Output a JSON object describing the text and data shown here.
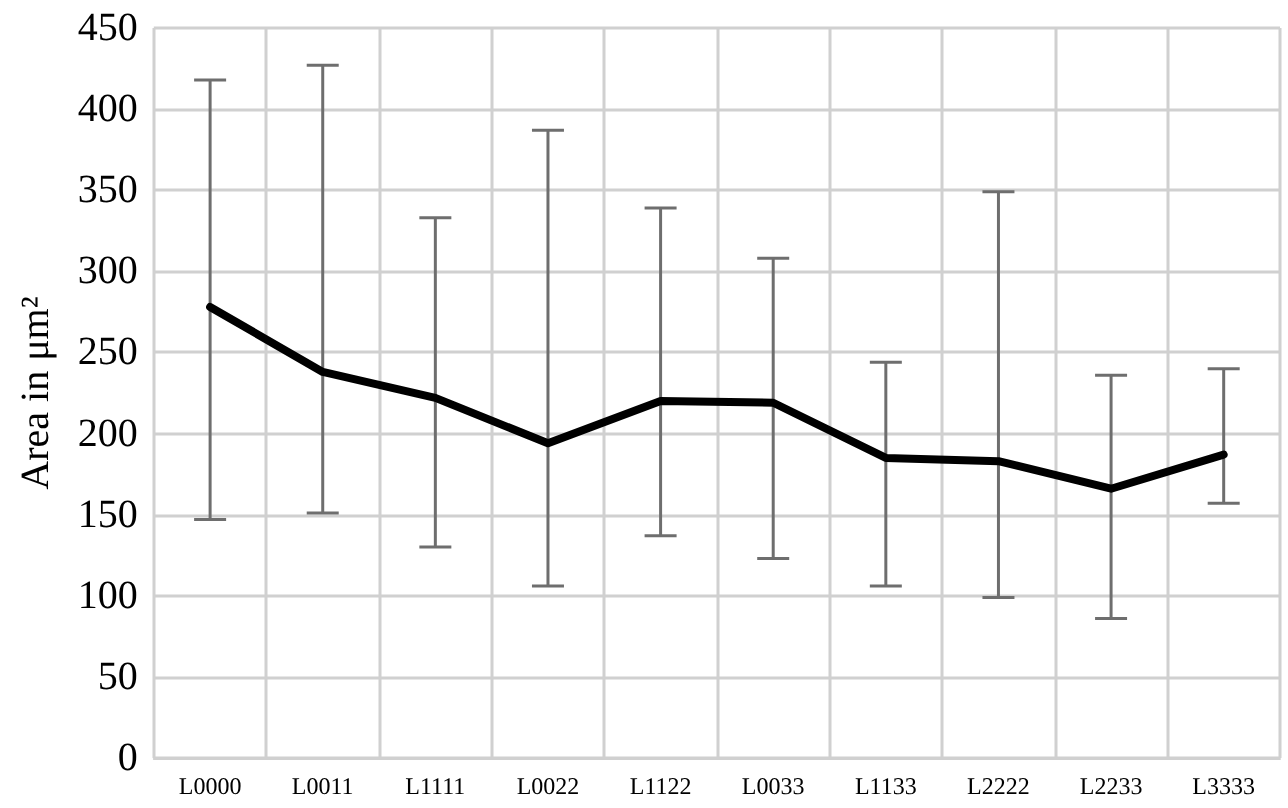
{
  "chart_data": {
    "type": "line",
    "ylabel": "Area in μm²",
    "categories": [
      "L0000",
      "L0011",
      "L1111",
      "L0022",
      "L1122",
      "L0033",
      "L1133",
      "L2222",
      "L2233",
      "L3333"
    ],
    "series": [
      {
        "color": "#000000",
        "values": [
          278,
          238,
          222,
          194,
          220,
          219,
          185,
          183,
          166,
          187
        ],
        "errors": [
          [
            147,
            418
          ],
          [
            151,
            427
          ],
          [
            130,
            333
          ],
          [
            106,
            387
          ],
          [
            137,
            339
          ],
          [
            123,
            308
          ],
          [
            106,
            244
          ],
          [
            99,
            349
          ],
          [
            86,
            236
          ],
          [
            157,
            240
          ]
        ]
      }
    ],
    "ylim": [
      0,
      450
    ],
    "yticks": [
      0,
      50,
      100,
      150,
      200,
      250,
      300,
      350,
      400,
      450
    ],
    "grid": true,
    "marker": "none",
    "line_style": "solid"
  }
}
